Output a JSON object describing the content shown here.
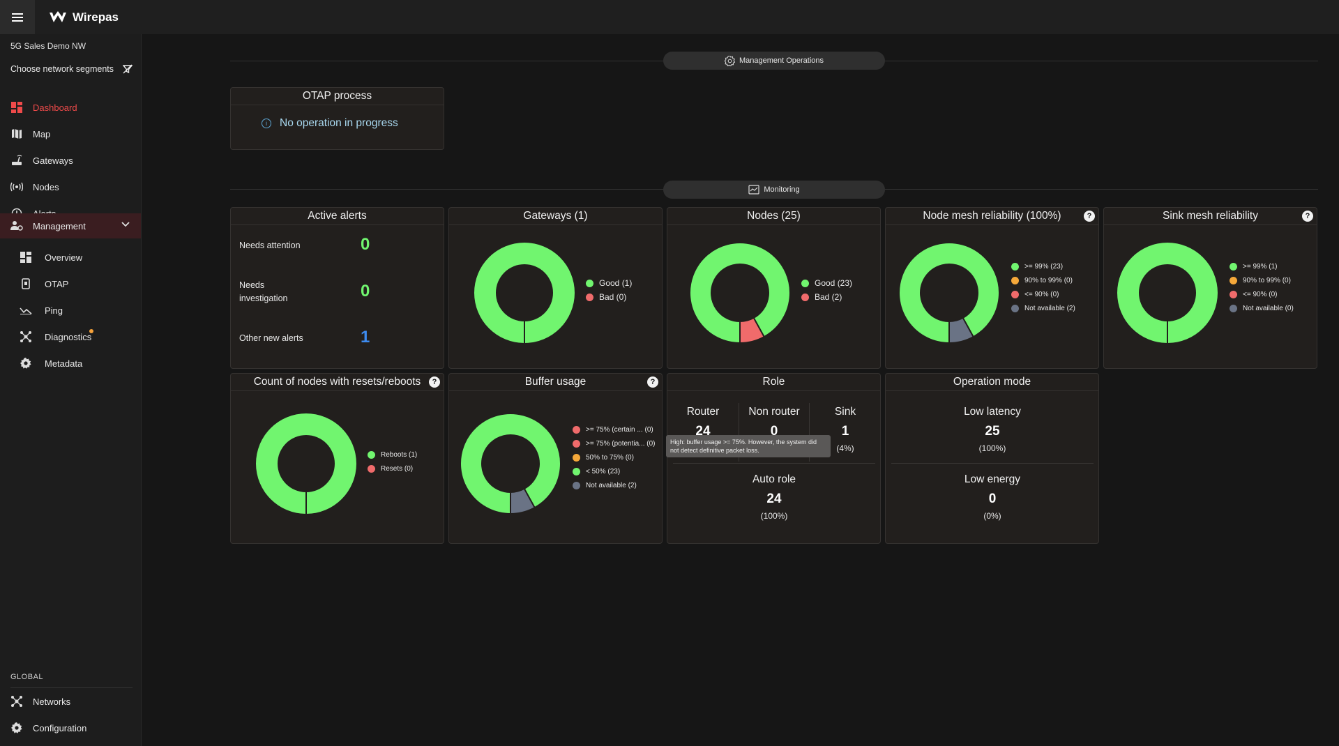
{
  "header": {
    "brand": "Wirepas"
  },
  "sidebar": {
    "network_name": "5G Sales Demo NW",
    "segments_label": "Choose network segments",
    "items": [
      {
        "label": "Dashboard",
        "icon": "dashboard-icon"
      },
      {
        "label": "Map",
        "icon": "map-icon"
      },
      {
        "label": "Gateways",
        "icon": "gateway-icon"
      },
      {
        "label": "Nodes",
        "icon": "nodes-icon"
      },
      {
        "label": "Alerts",
        "icon": "alert-icon"
      },
      {
        "label": "Management",
        "icon": "management-icon"
      }
    ],
    "sub_items": [
      {
        "label": "Overview",
        "icon": "overview-icon"
      },
      {
        "label": "OTAP",
        "icon": "otap-icon"
      },
      {
        "label": "Ping",
        "icon": "ping-icon"
      },
      {
        "label": "Diagnostics",
        "icon": "diagnostics-icon"
      },
      {
        "label": "Metadata",
        "icon": "gear-icon"
      }
    ],
    "global_label": "GLOBAL",
    "global_items": [
      {
        "label": "Networks",
        "icon": "networks-icon"
      },
      {
        "label": "Configuration",
        "icon": "gear-icon"
      }
    ]
  },
  "sections": {
    "management_ops": "Management Operations",
    "monitoring": "Monitoring"
  },
  "otap": {
    "title": "OTAP process",
    "message": "No operation in progress"
  },
  "active_alerts": {
    "title": "Active alerts",
    "needs_attention_label": "Needs attention",
    "needs_attention_value": "0",
    "needs_investigation_label": "Needs investigation",
    "needs_investigation_value": "0",
    "other_label": "Other new alerts",
    "other_value": "1"
  },
  "gateways_card": {
    "title": "Gateways (1)",
    "legend": [
      "Good (1)",
      "Bad (0)"
    ]
  },
  "nodes_card": {
    "title": "Nodes (25)",
    "legend": [
      "Good (23)",
      "Bad (2)"
    ]
  },
  "node_mesh": {
    "title": "Node mesh reliability (100%)",
    "legend": [
      ">= 99% (23)",
      "90% to 99% (0)",
      "<= 90% (0)",
      "Not available (2)"
    ]
  },
  "sink_mesh": {
    "title": "Sink mesh reliability",
    "legend": [
      ">= 99% (1)",
      "90% to 99% (0)",
      "<= 90% (0)",
      "Not available (0)"
    ]
  },
  "resets_card": {
    "title": "Count of nodes with resets/reboots",
    "legend": [
      "Reboots (1)",
      "Resets (0)"
    ]
  },
  "buffer_card": {
    "title": "Buffer usage",
    "legend": [
      ">= 75% (certain ... (0)",
      ">= 75% (potentia... (0)",
      "50% to 75% (0)",
      "< 50% (23)",
      "Not available (2)"
    ],
    "tooltip": "High: buffer usage >= 75%. However, the system did not detect definitive packet loss."
  },
  "role_card": {
    "title": "Role",
    "router_label": "Router",
    "router_value": "24",
    "nonrouter_label": "Non router",
    "nonrouter_value": "0",
    "sink_label": "Sink",
    "sink_value": "1",
    "sink_pct": "(4%)",
    "auto_label": "Auto role",
    "auto_value": "24",
    "auto_pct": "(100%)"
  },
  "opmode_card": {
    "title": "Operation mode",
    "low_latency_label": "Low latency",
    "low_latency_value": "25",
    "low_latency_pct": "(100%)",
    "low_energy_label": "Low energy",
    "low_energy_value": "0",
    "low_energy_pct": "(0%)"
  },
  "colors": {
    "green": "#71f56f",
    "red": "#f06b6b",
    "orange": "#f5a83a",
    "gray": "#6a7385",
    "accent": "#ef4a4a",
    "blue": "#3d8bf0"
  },
  "chart_data": [
    {
      "type": "pie",
      "name": "Gateways",
      "categories": [
        "Good",
        "Bad"
      ],
      "values": [
        1,
        0
      ]
    },
    {
      "type": "pie",
      "name": "Nodes",
      "categories": [
        "Good",
        "Bad"
      ],
      "values": [
        23,
        2
      ]
    },
    {
      "type": "pie",
      "name": "Node mesh reliability",
      "categories": [
        ">= 99%",
        "90% to 99%",
        "<= 90%",
        "Not available"
      ],
      "values": [
        23,
        0,
        0,
        2
      ]
    },
    {
      "type": "pie",
      "name": "Sink mesh reliability",
      "categories": [
        ">= 99%",
        "90% to 99%",
        "<= 90%",
        "Not available"
      ],
      "values": [
        1,
        0,
        0,
        0
      ]
    },
    {
      "type": "pie",
      "name": "Resets/reboots",
      "categories": [
        "Reboots",
        "Resets"
      ],
      "values": [
        1,
        0
      ]
    },
    {
      "type": "pie",
      "name": "Buffer usage",
      "categories": [
        ">= 75% (certain)",
        ">= 75% (potential)",
        "50% to 75%",
        "< 50%",
        "Not available"
      ],
      "values": [
        0,
        0,
        0,
        23,
        2
      ]
    }
  ]
}
